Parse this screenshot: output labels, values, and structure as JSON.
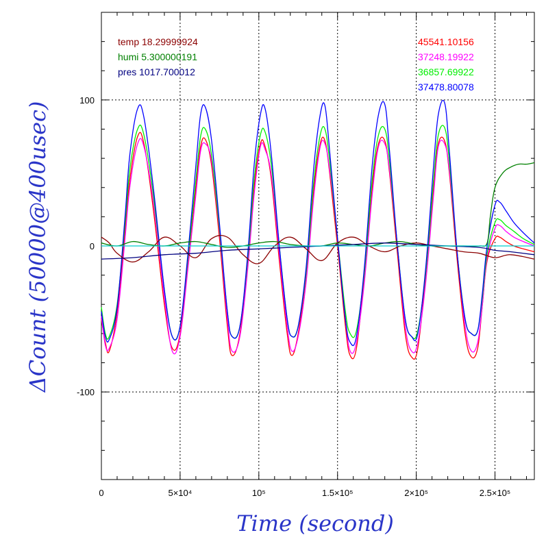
{
  "chart_data": {
    "type": "line",
    "xlabel": "Time (second)",
    "ylabel": "ΔCount (50000@400usec)",
    "xlim": [
      0,
      275000
    ],
    "ylim": [
      -160,
      160
    ],
    "grid": true,
    "x_ticks": [
      {
        "value": 0,
        "label": "0"
      },
      {
        "value": 50000,
        "label": "5×10⁴"
      },
      {
        "value": 100000,
        "label": "10⁵"
      },
      {
        "value": 150000,
        "label": "1.5×10⁵"
      },
      {
        "value": 200000,
        "label": "2×10⁵"
      },
      {
        "value": 250000,
        "label": "2.5×10⁵"
      }
    ],
    "y_ticks": [
      {
        "value": 100,
        "label": "100"
      },
      {
        "value": 0,
        "label": "0"
      },
      {
        "value": -100,
        "label": "-100"
      }
    ],
    "legend_left": [
      {
        "text": "temp 18.29999924",
        "color": "#8b0000"
      },
      {
        "text": "humi 5.300000191",
        "color": "#008000"
      },
      {
        "text": "pres 1017.700012",
        "color": "#000080"
      }
    ],
    "legend_right": [
      {
        "text": "45541.10156",
        "color": "#ff0000"
      },
      {
        "text": "37248.19922",
        "color": "#ff00ff"
      },
      {
        "text": "36857.69922",
        "color": "#00ee00"
      },
      {
        "text": "37478.80078",
        "color": "#0000ff"
      }
    ],
    "series": [
      {
        "color": "#ff0000",
        "x": [
          0,
          2500,
          5000,
          10000,
          15000,
          18000,
          23000,
          27000,
          33000,
          40000,
          45000,
          50000,
          55000,
          60000,
          63000,
          66000,
          70000,
          75000,
          80000,
          83000,
          88000,
          93000,
          97000,
          101000,
          104000,
          108000,
          113000,
          118000,
          121000,
          125000,
          130000,
          135000,
          139000,
          142000,
          145000,
          150000,
          155000,
          158000,
          162000,
          167000,
          172000,
          176000,
          180000,
          183000,
          188000,
          193000,
          197000,
          201000,
          206000,
          211000,
          214000,
          218000,
          221000,
          226000,
          231000,
          235000,
          239000,
          242000,
          245000,
          250000,
          253000,
          257000,
          262000,
          268000,
          275000
        ],
        "y": [
          -50,
          -66,
          -72,
          -45,
          10,
          45,
          75,
          70,
          25,
          -40,
          -70,
          -60,
          -10,
          40,
          68,
          73,
          55,
          5,
          -55,
          -75,
          -60,
          -10,
          40,
          70,
          68,
          45,
          -10,
          -60,
          -75,
          -60,
          -20,
          40,
          70,
          72,
          50,
          0,
          -55,
          -75,
          -70,
          -20,
          40,
          70,
          72,
          50,
          -5,
          -60,
          -76,
          -70,
          -20,
          40,
          70,
          72,
          50,
          -10,
          -60,
          -76,
          -70,
          -40,
          -10,
          5,
          6,
          3,
          0,
          -2,
          -4
        ]
      },
      {
        "color": "#ff00ff",
        "x": [
          0,
          2500,
          5000,
          10000,
          15000,
          18000,
          23000,
          27000,
          33000,
          40000,
          45000,
          50000,
          55000,
          60000,
          63000,
          66000,
          70000,
          75000,
          80000,
          83000,
          88000,
          93000,
          97000,
          101000,
          104000,
          108000,
          113000,
          118000,
          121000,
          125000,
          130000,
          135000,
          139000,
          142000,
          145000,
          150000,
          155000,
          158000,
          162000,
          167000,
          172000,
          176000,
          180000,
          183000,
          188000,
          193000,
          197000,
          201000,
          206000,
          211000,
          214000,
          218000,
          221000,
          226000,
          231000,
          235000,
          239000,
          242000,
          245000,
          250000,
          253000,
          257000,
          262000,
          268000,
          275000
        ],
        "y": [
          -48,
          -68,
          -70,
          -50,
          5,
          40,
          70,
          68,
          30,
          -35,
          -72,
          -62,
          -15,
          35,
          65,
          70,
          58,
          10,
          -50,
          -72,
          -62,
          -15,
          35,
          68,
          66,
          48,
          -5,
          -55,
          -72,
          -62,
          -25,
          35,
          68,
          70,
          52,
          5,
          -50,
          -72,
          -66,
          -25,
          35,
          68,
          70,
          52,
          0,
          -55,
          -72,
          -66,
          -25,
          35,
          68,
          70,
          52,
          -5,
          -55,
          -72,
          -66,
          -40,
          -8,
          12,
          14,
          10,
          6,
          3,
          0
        ]
      },
      {
        "color": "#00ee00",
        "x": [
          0,
          2500,
          5000,
          10000,
          15000,
          18000,
          23000,
          27000,
          33000,
          40000,
          45000,
          50000,
          55000,
          60000,
          63000,
          66000,
          70000,
          75000,
          80000,
          83000,
          88000,
          93000,
          97000,
          101000,
          104000,
          108000,
          113000,
          118000,
          121000,
          125000,
          130000,
          135000,
          139000,
          142000,
          145000,
          150000,
          155000,
          158000,
          162000,
          167000,
          172000,
          176000,
          180000,
          183000,
          188000,
          193000,
          197000,
          201000,
          206000,
          211000,
          214000,
          218000,
          221000,
          226000,
          231000,
          235000,
          239000,
          242000,
          245000,
          250000,
          253000,
          257000,
          262000,
          268000,
          275000
        ],
        "y": [
          -42,
          -60,
          -62,
          -40,
          15,
          52,
          80,
          76,
          35,
          -30,
          -62,
          -55,
          -8,
          45,
          75,
          80,
          62,
          12,
          -45,
          -62,
          -55,
          -8,
          45,
          76,
          78,
          55,
          0,
          -50,
          -62,
          -55,
          -18,
          45,
          76,
          80,
          58,
          5,
          -45,
          -60,
          -58,
          -18,
          45,
          76,
          80,
          58,
          0,
          -50,
          -62,
          -58,
          -18,
          45,
          76,
          81,
          58,
          -5,
          -50,
          -60,
          -58,
          -35,
          -5,
          16,
          18,
          14,
          10,
          5,
          1
        ]
      },
      {
        "color": "#0000ff",
        "x": [
          0,
          2500,
          5000,
          10000,
          15000,
          18000,
          23000,
          27000,
          33000,
          40000,
          45000,
          50000,
          55000,
          60000,
          63000,
          66000,
          70000,
          75000,
          80000,
          83000,
          88000,
          93000,
          97000,
          101000,
          104000,
          108000,
          113000,
          118000,
          121000,
          125000,
          130000,
          135000,
          139000,
          142000,
          145000,
          150000,
          155000,
          158000,
          162000,
          167000,
          172000,
          176000,
          180000,
          183000,
          188000,
          193000,
          197000,
          201000,
          206000,
          211000,
          214000,
          218000,
          221000,
          226000,
          231000,
          235000,
          239000,
          242000,
          245000,
          250000,
          253000,
          257000,
          262000,
          268000,
          275000
        ],
        "y": [
          -45,
          -62,
          -64,
          -42,
          20,
          62,
          94,
          88,
          40,
          -30,
          -62,
          -55,
          -5,
          55,
          90,
          95,
          72,
          15,
          -45,
          -62,
          -55,
          -5,
          55,
          90,
          94,
          62,
          0,
          -50,
          -62,
          -55,
          -15,
          55,
          90,
          96,
          65,
          5,
          -50,
          -66,
          -62,
          -15,
          55,
          90,
          97,
          65,
          0,
          -50,
          -62,
          -60,
          -15,
          55,
          90,
          98,
          65,
          -5,
          -50,
          -60,
          -58,
          -32,
          0,
          28,
          30,
          24,
          16,
          9,
          2
        ]
      },
      {
        "color": "#8b0000",
        "x": [
          0,
          5000,
          10000,
          20000,
          30000,
          40000,
          50000,
          60000,
          70000,
          80000,
          90000,
          100000,
          110000,
          120000,
          130000,
          140000,
          150000,
          160000,
          170000,
          180000,
          190000,
          200000,
          210000,
          220000,
          230000,
          240000,
          250000,
          260000,
          275000
        ],
        "y": [
          6,
          2,
          -5,
          -11,
          -4,
          6,
          0,
          -8,
          5,
          6,
          -6,
          -12,
          0,
          6,
          -2,
          -10,
          2,
          6,
          0,
          -4,
          0,
          2,
          0,
          -2,
          -4,
          -5,
          -8,
          -6,
          -9
        ]
      },
      {
        "color": "#008000",
        "x": [
          0,
          10000,
          20000,
          30000,
          40000,
          50000,
          60000,
          70000,
          80000,
          90000,
          100000,
          110000,
          120000,
          130000,
          140000,
          150000,
          160000,
          170000,
          180000,
          190000,
          200000,
          210000,
          220000,
          230000,
          240000,
          245000,
          247000,
          250000,
          255000,
          260000,
          265000,
          270000,
          275000
        ],
        "y": [
          2,
          0,
          3,
          1,
          0,
          2,
          3,
          1,
          -1,
          0,
          2,
          3,
          1,
          0,
          0,
          2,
          1,
          0,
          2,
          3,
          1,
          0,
          0,
          0,
          0,
          2,
          20,
          40,
          50,
          54,
          56,
          56,
          57
        ]
      },
      {
        "color": "#000080",
        "x": [
          0,
          20000,
          40000,
          60000,
          80000,
          100000,
          120000,
          140000,
          160000,
          180000,
          200000,
          220000,
          240000,
          250000,
          260000,
          275000
        ],
        "y": [
          -9,
          -8,
          -6,
          -5,
          -3,
          -2,
          -1,
          0,
          1,
          2,
          1,
          0,
          -1,
          -3,
          -4,
          -6
        ]
      },
      {
        "color": "#00cccc",
        "x": [
          0,
          50000,
          100000,
          150000,
          200000,
          250000,
          275000
        ],
        "y": [
          0,
          0,
          0,
          0,
          0,
          0,
          0
        ]
      }
    ]
  }
}
